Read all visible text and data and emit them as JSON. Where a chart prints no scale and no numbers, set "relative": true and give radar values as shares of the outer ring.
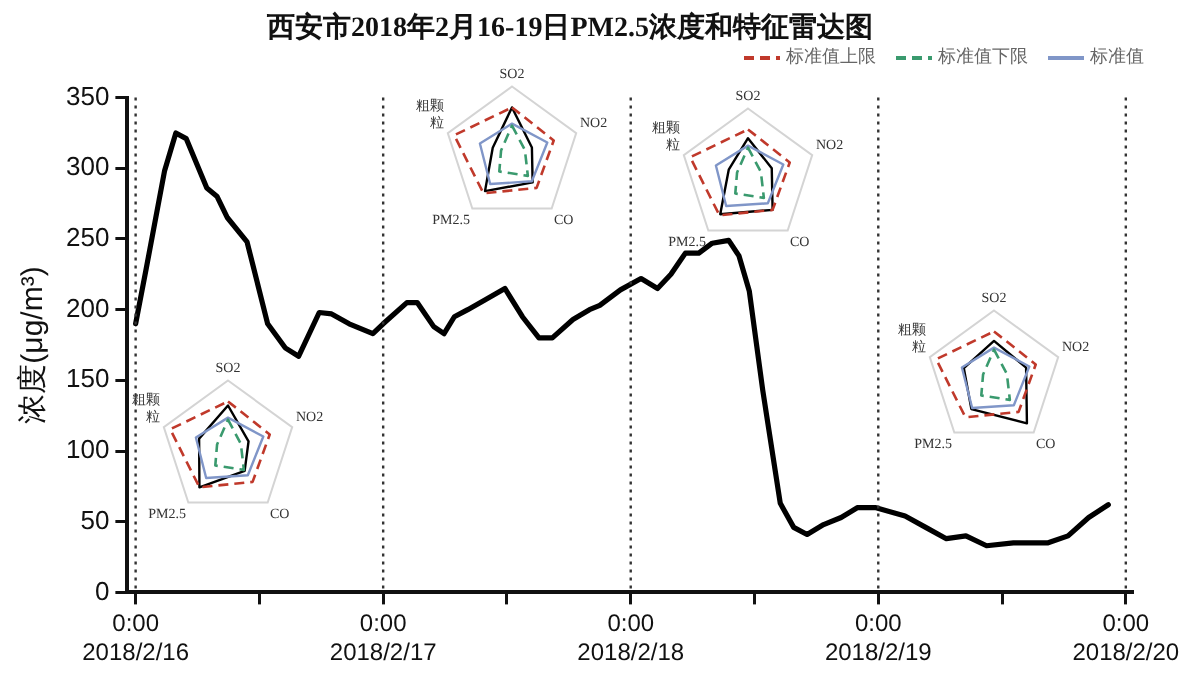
{
  "chart_data": [
    {
      "type": "line",
      "title": "西安市2018年2月16-19日PM2.5浓度和特征雷达图",
      "ylabel": "浓度(μg/m³)",
      "series": [
        {
          "color": "#000000",
          "x": [
            "2018-02-16T00:00",
            "2018-02-16T01:00",
            "2018-02-16T02:48",
            "2018-02-16T03:54",
            "2018-02-16T04:54",
            "2018-02-16T06:54",
            "2018-02-16T07:54",
            "2018-02-16T08:54",
            "2018-02-16T10:48",
            "2018-02-16T12:48",
            "2018-02-16T14:30",
            "2018-02-16T15:48",
            "2018-02-16T17:48",
            "2018-02-16T19:00",
            "2018-02-16T20:42",
            "2018-02-16T23:00",
            "2018-02-17T00:00",
            "2018-02-17T02:18",
            "2018-02-17T03:18",
            "2018-02-17T04:54",
            "2018-02-17T05:54",
            "2018-02-17T06:54",
            "2018-02-17T08:12",
            "2018-02-17T09:54",
            "2018-02-17T11:48",
            "2018-02-17T13:30",
            "2018-02-17T15:06",
            "2018-02-17T16:24",
            "2018-02-17T18:24",
            "2018-02-17T20:00",
            "2018-02-17T21:00",
            "2018-02-17T23:00",
            "2018-02-18T01:00",
            "2018-02-18T02:36",
            "2018-02-18T03:54",
            "2018-02-18T05:18",
            "2018-02-18T06:36",
            "2018-02-18T07:54",
            "2018-02-18T09:30",
            "2018-02-18T10:30",
            "2018-02-18T11:30",
            "2018-02-18T12:48",
            "2018-02-18T14:30",
            "2018-02-18T15:48",
            "2018-02-18T17:06",
            "2018-02-18T18:42",
            "2018-02-18T20:24",
            "2018-02-18T22:00",
            "2018-02-18T23:42",
            "2018-02-19T02:36",
            "2018-02-19T04:36",
            "2018-02-19T06:36",
            "2018-02-19T08:30",
            "2018-02-19T10:30",
            "2018-02-19T13:06",
            "2018-02-19T16:24",
            "2018-02-19T18:24",
            "2018-02-19T20:24",
            "2018-02-19T22:18"
          ],
          "values": [
            190,
            228,
            298,
            325,
            321,
            286,
            280,
            265,
            248,
            190,
            173,
            167,
            198,
            197,
            190,
            183,
            190,
            205,
            205,
            188,
            183,
            195,
            200,
            207,
            215,
            195,
            180,
            180,
            193,
            200,
            203,
            214,
            222,
            215,
            225,
            240,
            240,
            247,
            249,
            238,
            213,
            143,
            63,
            46,
            41,
            48,
            53,
            60,
            60,
            54,
            46,
            38,
            40,
            33,
            35,
            35,
            40,
            53,
            62
          ]
        }
      ],
      "xlim": [
        "2018-02-15T23:12",
        "2018-02-20T00:36"
      ],
      "xticks": [
        {
          "value": "2018-02-16T00:00",
          "label": "0:00\n2018/2/16"
        },
        {
          "value": "2018-02-16T12:00",
          "label": null
        },
        {
          "value": "2018-02-17T00:00",
          "label": "0:00\n2018/2/17"
        },
        {
          "value": "2018-02-17T12:00",
          "label": null
        },
        {
          "value": "2018-02-18T00:00",
          "label": "0:00\n2018/2/18"
        },
        {
          "value": "2018-02-18T12:00",
          "label": null
        },
        {
          "value": "2018-02-19T00:00",
          "label": "0:00\n2018/2/19"
        },
        {
          "value": "2018-02-19T12:00",
          "label": null
        },
        {
          "value": "2018-02-20T00:00",
          "label": "0:00\n2018/2/20"
        }
      ],
      "ylim": [
        0,
        350
      ],
      "yticks": [
        0,
        50,
        100,
        150,
        200,
        250,
        300,
        350
      ],
      "grid": false,
      "marker": "none",
      "line_style": "solid",
      "legend": false,
      "ref_lines": [
        {
          "axis": "x",
          "value": "2018-02-16T00:00",
          "line_style": "dotted",
          "color": "#333333"
        },
        {
          "axis": "x",
          "value": "2018-02-17T00:00",
          "line_style": "dotted",
          "color": "#333333"
        },
        {
          "axis": "x",
          "value": "2018-02-18T00:00",
          "line_style": "dotted",
          "color": "#333333"
        },
        {
          "axis": "x",
          "value": "2018-02-19T00:00",
          "line_style": "dotted",
          "color": "#333333"
        },
        {
          "axis": "x",
          "value": "2018-02-20T00:00",
          "line_style": "dotted",
          "color": "#333333"
        }
      ]
    },
    {
      "type": "radar",
      "relative": true,
      "categories": [
        "SO2",
        "NO2",
        "CO",
        "PM2.5",
        "粗颗粒"
      ],
      "legend": "top right",
      "series": [
        {
          "name": "标准值上限",
          "color": "#c0392b",
          "line_style": "dashed",
          "values": [
            0.69,
            0.65,
            0.62,
            0.72,
            0.9
          ]
        },
        {
          "name": "标准值下限",
          "color": "#3a9a6e",
          "line_style": "dashed",
          "values": [
            0.42,
            0.2,
            0.4,
            0.32,
            0.17
          ]
        },
        {
          "name": "标准值",
          "color": "#8096c8",
          "line_style": "solid",
          "values": [
            0.45,
            0.55,
            0.5,
            0.55,
            0.5
          ]
        },
        {
          "color": "#000000",
          "line_style": "solid",
          "values": [
            0.63,
            0.32,
            0.42,
            0.72,
            0.45
          ]
        }
      ]
    },
    {
      "type": "radar",
      "relative": true,
      "categories": [
        "SO2",
        "NO2",
        "CO",
        "PM2.5",
        "粗颗粒"
      ],
      "series": [
        {
          "color": "#c0392b",
          "line_style": "dashed",
          "values": [
            0.69,
            0.65,
            0.62,
            0.72,
            0.9
          ]
        },
        {
          "color": "#3a9a6e",
          "line_style": "dashed",
          "values": [
            0.42,
            0.2,
            0.4,
            0.32,
            0.17
          ]
        },
        {
          "color": "#8096c8",
          "line_style": "solid",
          "values": [
            0.45,
            0.55,
            0.5,
            0.55,
            0.5
          ]
        },
        {
          "color": "#000000",
          "line_style": "solid",
          "values": [
            0.69,
            0.31,
            0.52,
            0.68,
            0.3
          ]
        }
      ]
    },
    {
      "type": "radar",
      "relative": true,
      "categories": [
        "SO2",
        "NO2",
        "CO",
        "PM2.5",
        "粗颗粒"
      ],
      "series": [
        {
          "color": "#c0392b",
          "line_style": "dashed",
          "values": [
            0.69,
            0.65,
            0.62,
            0.72,
            0.9
          ]
        },
        {
          "color": "#3a9a6e",
          "line_style": "dashed",
          "values": [
            0.42,
            0.2,
            0.4,
            0.32,
            0.17
          ]
        },
        {
          "color": "#8096c8",
          "line_style": "solid",
          "values": [
            0.45,
            0.55,
            0.5,
            0.55,
            0.5
          ]
        },
        {
          "color": "#000000",
          "line_style": "solid",
          "values": [
            0.56,
            0.37,
            0.62,
            0.7,
            0.3
          ]
        }
      ]
    },
    {
      "type": "radar",
      "relative": true,
      "categories": [
        "SO2",
        "NO2",
        "CO",
        "PM2.5",
        "粗颗粒"
      ],
      "series": [
        {
          "color": "#c0392b",
          "line_style": "dashed",
          "values": [
            0.69,
            0.65,
            0.62,
            0.72,
            0.9
          ]
        },
        {
          "color": "#3a9a6e",
          "line_style": "dashed",
          "values": [
            0.42,
            0.2,
            0.4,
            0.32,
            0.17
          ]
        },
        {
          "color": "#8096c8",
          "line_style": "solid",
          "values": [
            0.45,
            0.55,
            0.5,
            0.55,
            0.5
          ]
        },
        {
          "color": "#000000",
          "line_style": "solid",
          "values": [
            0.55,
            0.5,
            0.83,
            0.57,
            0.47
          ]
        }
      ]
    }
  ]
}
